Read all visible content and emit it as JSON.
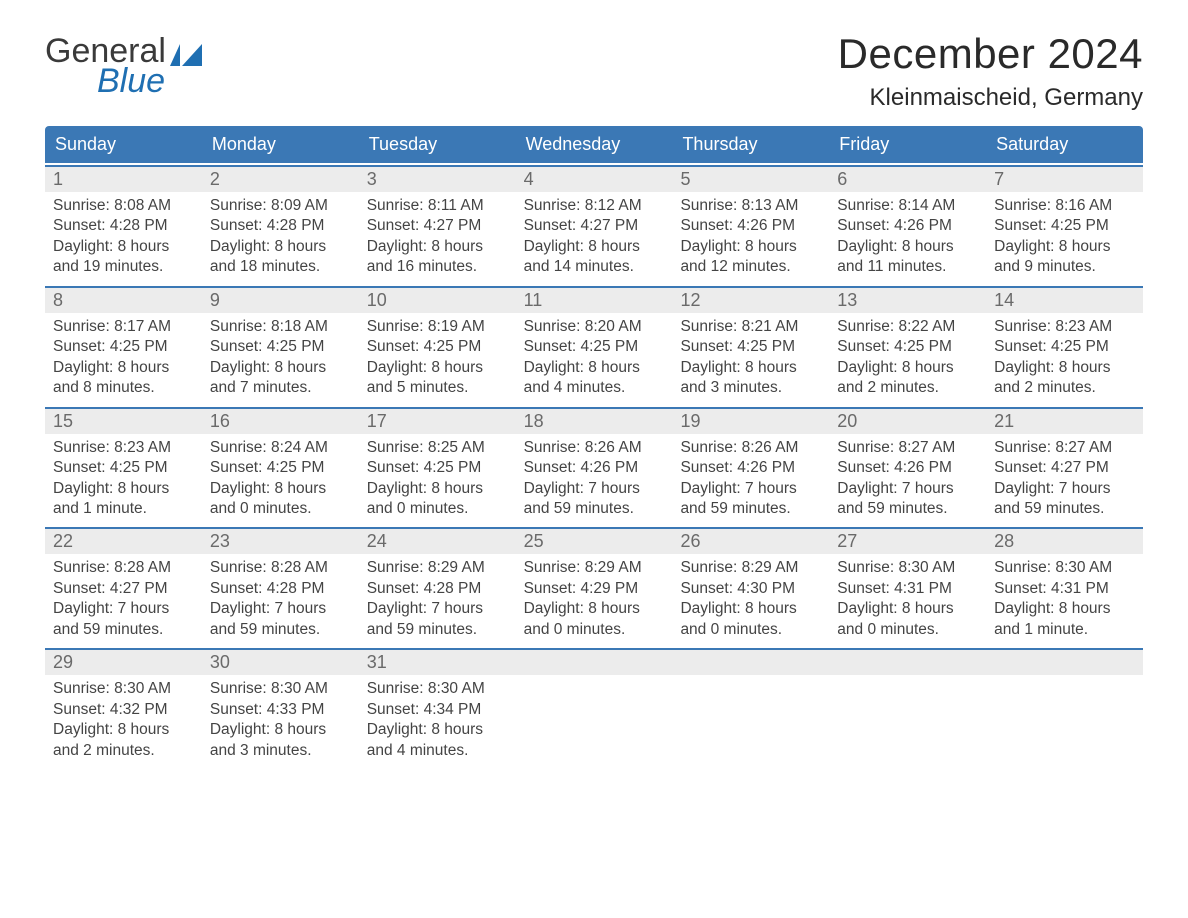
{
  "colors": {
    "header_bg": "#3b78b5",
    "header_text": "#ffffff",
    "week_border_top": "#3b78b5",
    "daynum_bg": "#ececec",
    "daynum_text": "#6a6a6a",
    "body_text": "#444444",
    "page_bg": "#ffffff",
    "logo_blue": "#1f6fb2",
    "title_text": "#2a2a2a"
  },
  "fonts": {
    "month_title_pt": 42,
    "location_pt": 24,
    "header_pt": 18,
    "daynum_pt": 18,
    "body_pt": 15.5
  },
  "logo": {
    "line1": "General",
    "line2": "Blue"
  },
  "title": "December 2024",
  "location": "Kleinmaischeid, Germany",
  "dow": [
    "Sunday",
    "Monday",
    "Tuesday",
    "Wednesday",
    "Thursday",
    "Friday",
    "Saturday"
  ],
  "weeks": [
    [
      {
        "num": "1",
        "lines": [
          "Sunrise: 8:08 AM",
          "Sunset: 4:28 PM",
          "Daylight: 8 hours",
          "and 19 minutes."
        ]
      },
      {
        "num": "2",
        "lines": [
          "Sunrise: 8:09 AM",
          "Sunset: 4:28 PM",
          "Daylight: 8 hours",
          "and 18 minutes."
        ]
      },
      {
        "num": "3",
        "lines": [
          "Sunrise: 8:11 AM",
          "Sunset: 4:27 PM",
          "Daylight: 8 hours",
          "and 16 minutes."
        ]
      },
      {
        "num": "4",
        "lines": [
          "Sunrise: 8:12 AM",
          "Sunset: 4:27 PM",
          "Daylight: 8 hours",
          "and 14 minutes."
        ]
      },
      {
        "num": "5",
        "lines": [
          "Sunrise: 8:13 AM",
          "Sunset: 4:26 PM",
          "Daylight: 8 hours",
          "and 12 minutes."
        ]
      },
      {
        "num": "6",
        "lines": [
          "Sunrise: 8:14 AM",
          "Sunset: 4:26 PM",
          "Daylight: 8 hours",
          "and 11 minutes."
        ]
      },
      {
        "num": "7",
        "lines": [
          "Sunrise: 8:16 AM",
          "Sunset: 4:25 PM",
          "Daylight: 8 hours",
          "and 9 minutes."
        ]
      }
    ],
    [
      {
        "num": "8",
        "lines": [
          "Sunrise: 8:17 AM",
          "Sunset: 4:25 PM",
          "Daylight: 8 hours",
          "and 8 minutes."
        ]
      },
      {
        "num": "9",
        "lines": [
          "Sunrise: 8:18 AM",
          "Sunset: 4:25 PM",
          "Daylight: 8 hours",
          "and 7 minutes."
        ]
      },
      {
        "num": "10",
        "lines": [
          "Sunrise: 8:19 AM",
          "Sunset: 4:25 PM",
          "Daylight: 8 hours",
          "and 5 minutes."
        ]
      },
      {
        "num": "11",
        "lines": [
          "Sunrise: 8:20 AM",
          "Sunset: 4:25 PM",
          "Daylight: 8 hours",
          "and 4 minutes."
        ]
      },
      {
        "num": "12",
        "lines": [
          "Sunrise: 8:21 AM",
          "Sunset: 4:25 PM",
          "Daylight: 8 hours",
          "and 3 minutes."
        ]
      },
      {
        "num": "13",
        "lines": [
          "Sunrise: 8:22 AM",
          "Sunset: 4:25 PM",
          "Daylight: 8 hours",
          "and 2 minutes."
        ]
      },
      {
        "num": "14",
        "lines": [
          "Sunrise: 8:23 AM",
          "Sunset: 4:25 PM",
          "Daylight: 8 hours",
          "and 2 minutes."
        ]
      }
    ],
    [
      {
        "num": "15",
        "lines": [
          "Sunrise: 8:23 AM",
          "Sunset: 4:25 PM",
          "Daylight: 8 hours",
          "and 1 minute."
        ]
      },
      {
        "num": "16",
        "lines": [
          "Sunrise: 8:24 AM",
          "Sunset: 4:25 PM",
          "Daylight: 8 hours",
          "and 0 minutes."
        ]
      },
      {
        "num": "17",
        "lines": [
          "Sunrise: 8:25 AM",
          "Sunset: 4:25 PM",
          "Daylight: 8 hours",
          "and 0 minutes."
        ]
      },
      {
        "num": "18",
        "lines": [
          "Sunrise: 8:26 AM",
          "Sunset: 4:26 PM",
          "Daylight: 7 hours",
          "and 59 minutes."
        ]
      },
      {
        "num": "19",
        "lines": [
          "Sunrise: 8:26 AM",
          "Sunset: 4:26 PM",
          "Daylight: 7 hours",
          "and 59 minutes."
        ]
      },
      {
        "num": "20",
        "lines": [
          "Sunrise: 8:27 AM",
          "Sunset: 4:26 PM",
          "Daylight: 7 hours",
          "and 59 minutes."
        ]
      },
      {
        "num": "21",
        "lines": [
          "Sunrise: 8:27 AM",
          "Sunset: 4:27 PM",
          "Daylight: 7 hours",
          "and 59 minutes."
        ]
      }
    ],
    [
      {
        "num": "22",
        "lines": [
          "Sunrise: 8:28 AM",
          "Sunset: 4:27 PM",
          "Daylight: 7 hours",
          "and 59 minutes."
        ]
      },
      {
        "num": "23",
        "lines": [
          "Sunrise: 8:28 AM",
          "Sunset: 4:28 PM",
          "Daylight: 7 hours",
          "and 59 minutes."
        ]
      },
      {
        "num": "24",
        "lines": [
          "Sunrise: 8:29 AM",
          "Sunset: 4:28 PM",
          "Daylight: 7 hours",
          "and 59 minutes."
        ]
      },
      {
        "num": "25",
        "lines": [
          "Sunrise: 8:29 AM",
          "Sunset: 4:29 PM",
          "Daylight: 8 hours",
          "and 0 minutes."
        ]
      },
      {
        "num": "26",
        "lines": [
          "Sunrise: 8:29 AM",
          "Sunset: 4:30 PM",
          "Daylight: 8 hours",
          "and 0 minutes."
        ]
      },
      {
        "num": "27",
        "lines": [
          "Sunrise: 8:30 AM",
          "Sunset: 4:31 PM",
          "Daylight: 8 hours",
          "and 0 minutes."
        ]
      },
      {
        "num": "28",
        "lines": [
          "Sunrise: 8:30 AM",
          "Sunset: 4:31 PM",
          "Daylight: 8 hours",
          "and 1 minute."
        ]
      }
    ],
    [
      {
        "num": "29",
        "lines": [
          "Sunrise: 8:30 AM",
          "Sunset: 4:32 PM",
          "Daylight: 8 hours",
          "and 2 minutes."
        ]
      },
      {
        "num": "30",
        "lines": [
          "Sunrise: 8:30 AM",
          "Sunset: 4:33 PM",
          "Daylight: 8 hours",
          "and 3 minutes."
        ]
      },
      {
        "num": "31",
        "lines": [
          "Sunrise: 8:30 AM",
          "Sunset: 4:34 PM",
          "Daylight: 8 hours",
          "and 4 minutes."
        ]
      },
      {
        "num": "",
        "lines": []
      },
      {
        "num": "",
        "lines": []
      },
      {
        "num": "",
        "lines": []
      },
      {
        "num": "",
        "lines": []
      }
    ]
  ]
}
